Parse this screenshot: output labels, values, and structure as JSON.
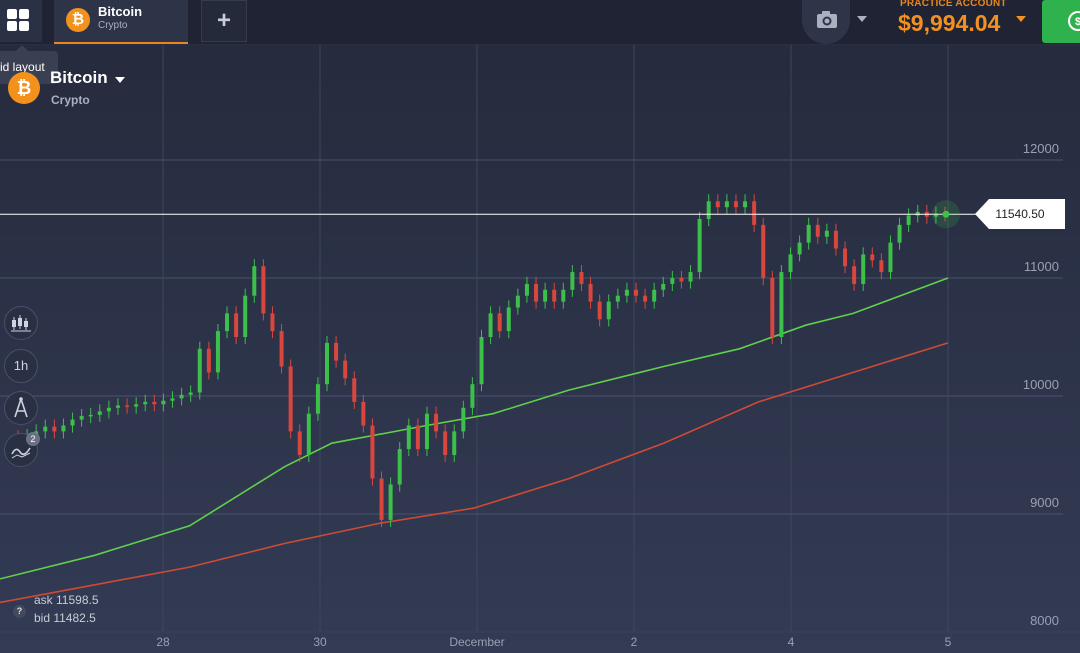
{
  "topbar": {
    "asset_tab": {
      "title": "Bitcoin",
      "subtitle": "Crypto",
      "icon": "bitcoin-icon"
    },
    "add_tab_label": "+",
    "account_label": "PRACTICE ACCOUNT",
    "balance": "$9,994.04"
  },
  "tooltip": {
    "text": "id layout"
  },
  "asset_header": {
    "name": "Bitcoin",
    "category": "Crypto",
    "icon": "bitcoin-icon"
  },
  "tools": {
    "chart_type_icon": "candles-icon",
    "timeframe": "1h",
    "drawing_icon": "compass-icon",
    "indicators_icon": "indicators-icon",
    "indicators_count": "2"
  },
  "quote": {
    "ask": "ask 11598.5",
    "bid": "bid 11482.5",
    "current_price": "11540.50"
  },
  "colors": {
    "up": "#3cc04a",
    "down": "#d9463d",
    "ma_fast": "#5fd04a",
    "ma_slow": "#cf4a35",
    "accent": "#f09122",
    "deposit": "#2fb14e"
  },
  "chart_data": {
    "type": "candlestick",
    "y_ticks": [
      "12000",
      "11000",
      "10000",
      "9000",
      "8000"
    ],
    "x_ticks": [
      "28",
      "30",
      "December",
      "2",
      "4",
      "5"
    ],
    "ylim": [
      8000,
      12300
    ],
    "current_price": 11540.5,
    "candles": [
      {
        "o": 9650,
        "c": 9620
      },
      {
        "o": 9620,
        "c": 9660
      },
      {
        "o": 9660,
        "c": 9700
      },
      {
        "o": 9700,
        "c": 9740
      },
      {
        "o": 9740,
        "c": 9700
      },
      {
        "o": 9700,
        "c": 9750
      },
      {
        "o": 9750,
        "c": 9800
      },
      {
        "o": 9800,
        "c": 9830
      },
      {
        "o": 9830,
        "c": 9840
      },
      {
        "o": 9840,
        "c": 9870
      },
      {
        "o": 9870,
        "c": 9900
      },
      {
        "o": 9900,
        "c": 9920
      },
      {
        "o": 9920,
        "c": 9910
      },
      {
        "o": 9910,
        "c": 9930
      },
      {
        "o": 9930,
        "c": 9950
      },
      {
        "o": 9950,
        "c": 9930
      },
      {
        "o": 9930,
        "c": 9960
      },
      {
        "o": 9960,
        "c": 9980
      },
      {
        "o": 9980,
        "c": 10010
      },
      {
        "o": 10010,
        "c": 10030
      },
      {
        "o": 10030,
        "c": 10400
      },
      {
        "o": 10400,
        "c": 10200
      },
      {
        "o": 10200,
        "c": 10550
      },
      {
        "o": 10550,
        "c": 10700
      },
      {
        "o": 10700,
        "c": 10500
      },
      {
        "o": 10500,
        "c": 10850
      },
      {
        "o": 10850,
        "c": 11100
      },
      {
        "o": 11100,
        "c": 10700
      },
      {
        "o": 10700,
        "c": 10550
      },
      {
        "o": 10550,
        "c": 10250
      },
      {
        "o": 10250,
        "c": 9700
      },
      {
        "o": 9700,
        "c": 9500
      },
      {
        "o": 9500,
        "c": 9850
      },
      {
        "o": 9850,
        "c": 10100
      },
      {
        "o": 10100,
        "c": 10450
      },
      {
        "o": 10450,
        "c": 10300
      },
      {
        "o": 10300,
        "c": 10150
      },
      {
        "o": 10150,
        "c": 9950
      },
      {
        "o": 9950,
        "c": 9750
      },
      {
        "o": 9750,
        "c": 9300
      },
      {
        "o": 9300,
        "c": 8950
      },
      {
        "o": 8950,
        "c": 9250
      },
      {
        "o": 9250,
        "c": 9550
      },
      {
        "o": 9550,
        "c": 9750
      },
      {
        "o": 9750,
        "c": 9550
      },
      {
        "o": 9550,
        "c": 9850
      },
      {
        "o": 9850,
        "c": 9700
      },
      {
        "o": 9700,
        "c": 9500
      },
      {
        "o": 9500,
        "c": 9700
      },
      {
        "o": 9700,
        "c": 9900
      },
      {
        "o": 9900,
        "c": 10100
      },
      {
        "o": 10100,
        "c": 10500
      },
      {
        "o": 10500,
        "c": 10700
      },
      {
        "o": 10700,
        "c": 10550
      },
      {
        "o": 10550,
        "c": 10750
      },
      {
        "o": 10750,
        "c": 10850
      },
      {
        "o": 10850,
        "c": 10950
      },
      {
        "o": 10950,
        "c": 10800
      },
      {
        "o": 10800,
        "c": 10900
      },
      {
        "o": 10900,
        "c": 10800
      },
      {
        "o": 10800,
        "c": 10900
      },
      {
        "o": 10900,
        "c": 11050
      },
      {
        "o": 11050,
        "c": 10950
      },
      {
        "o": 10950,
        "c": 10800
      },
      {
        "o": 10800,
        "c": 10650
      },
      {
        "o": 10650,
        "c": 10800
      },
      {
        "o": 10800,
        "c": 10850
      },
      {
        "o": 10850,
        "c": 10900
      },
      {
        "o": 10900,
        "c": 10850
      },
      {
        "o": 10850,
        "c": 10800
      },
      {
        "o": 10800,
        "c": 10900
      },
      {
        "o": 10900,
        "c": 10950
      },
      {
        "o": 10950,
        "c": 11000
      },
      {
        "o": 11000,
        "c": 10970
      },
      {
        "o": 10970,
        "c": 11050
      },
      {
        "o": 11050,
        "c": 11500
      },
      {
        "o": 11500,
        "c": 11650
      },
      {
        "o": 11650,
        "c": 11600
      },
      {
        "o": 11600,
        "c": 11650
      },
      {
        "o": 11650,
        "c": 11600
      },
      {
        "o": 11600,
        "c": 11650
      },
      {
        "o": 11650,
        "c": 11450
      },
      {
        "o": 11450,
        "c": 11000
      },
      {
        "o": 11000,
        "c": 10500
      },
      {
        "o": 10500,
        "c": 11050
      },
      {
        "o": 11050,
        "c": 11200
      },
      {
        "o": 11200,
        "c": 11300
      },
      {
        "o": 11300,
        "c": 11450
      },
      {
        "o": 11450,
        "c": 11350
      },
      {
        "o": 11350,
        "c": 11400
      },
      {
        "o": 11400,
        "c": 11250
      },
      {
        "o": 11250,
        "c": 11100
      },
      {
        "o": 11100,
        "c": 10950
      },
      {
        "o": 10950,
        "c": 11200
      },
      {
        "o": 11200,
        "c": 11150
      },
      {
        "o": 11150,
        "c": 11050
      },
      {
        "o": 11050,
        "c": 11300
      },
      {
        "o": 11300,
        "c": 11450
      },
      {
        "o": 11450,
        "c": 11530
      },
      {
        "o": 11530,
        "c": 11560
      },
      {
        "o": 11560,
        "c": 11520
      },
      {
        "o": 11520,
        "c": 11545
      },
      {
        "o": 11545,
        "c": 11540
      }
    ],
    "moving_averages": [
      {
        "name": "MA fast",
        "points": [
          [
            0,
            8450
          ],
          [
            0.1,
            8650
          ],
          [
            0.2,
            8900
          ],
          [
            0.3,
            9400
          ],
          [
            0.35,
            9600
          ],
          [
            0.45,
            9750
          ],
          [
            0.52,
            9850
          ],
          [
            0.6,
            10050
          ],
          [
            0.7,
            10250
          ],
          [
            0.78,
            10400
          ],
          [
            0.85,
            10600
          ],
          [
            0.9,
            10700
          ],
          [
            1,
            11000
          ]
        ]
      },
      {
        "name": "MA slow",
        "points": [
          [
            0,
            8250
          ],
          [
            0.1,
            8400
          ],
          [
            0.2,
            8550
          ],
          [
            0.3,
            8750
          ],
          [
            0.4,
            8920
          ],
          [
            0.5,
            9050
          ],
          [
            0.6,
            9300
          ],
          [
            0.7,
            9600
          ],
          [
            0.8,
            9950
          ],
          [
            0.9,
            10200
          ],
          [
            1,
            10450
          ]
        ]
      }
    ]
  }
}
